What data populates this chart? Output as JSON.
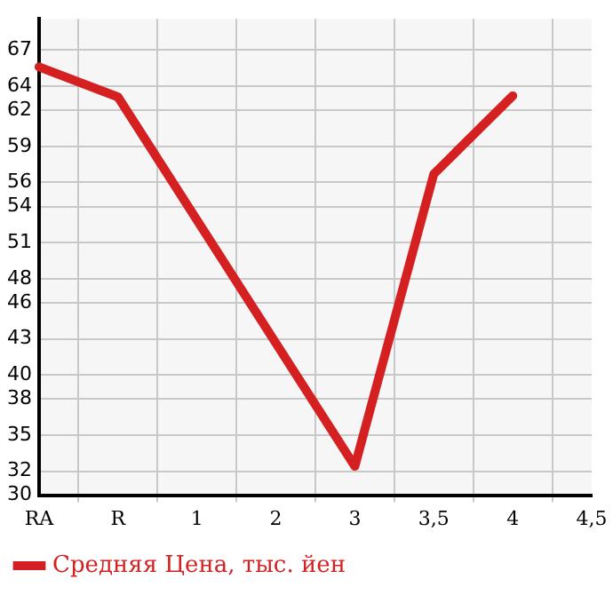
{
  "chart_data": {
    "type": "line",
    "categories": [
      "RA",
      "R",
      "1",
      "2",
      "3",
      "3,5",
      "4",
      "4,5"
    ],
    "series": [
      {
        "name": "Средняя Цена, тыс. йен",
        "color": "#d42020",
        "values": [
          65.6,
          63.1,
          null,
          null,
          32.4,
          56.7,
          63.2,
          null
        ]
      }
    ],
    "ylim": [
      30,
      69.6
    ],
    "yticks": [
      30,
      32,
      35,
      38,
      40,
      43,
      46,
      48,
      51,
      54,
      56,
      59,
      62,
      64,
      67
    ],
    "grid": true,
    "legend": "bottom left",
    "marker": "none",
    "line_style": "solid"
  }
}
